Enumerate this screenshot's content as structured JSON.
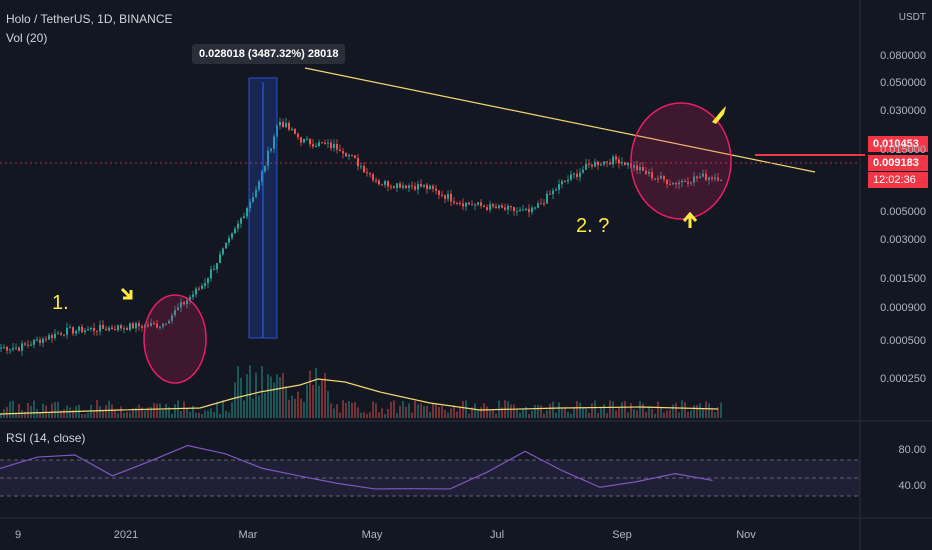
{
  "header": {
    "symbol": "Holo / TetherUS, 1D, BINANCE",
    "volume_indicator": "Vol (20)",
    "rsi_indicator": "RSI (14, close)",
    "quote_currency": "USDT"
  },
  "measure_label": "0.028018 (3487.32%) 28018",
  "annotations": {
    "one": "1.",
    "two": "2. ?"
  },
  "tags": {
    "last_price": "0.010453",
    "current_price": "0.009183",
    "countdown": "12:02:36"
  },
  "colors": {
    "up": "#26a69a",
    "down": "#ef5350",
    "trend": "#f5d76e",
    "rsi": "#7e57c2",
    "highlight_circle": "#e91e63",
    "measure": "#2962ff",
    "hline": "#f23645"
  },
  "chart_data": [
    {
      "type": "candlestick",
      "title": "Holo / TetherUS, 1D, BINANCE",
      "y_scale": "log",
      "y_ticks": [
        "0.080000",
        "0.050000",
        "0.030000",
        "0.015000",
        "0.005000",
        "0.003000",
        "0.001500",
        "0.000900",
        "0.000500",
        "0.000250"
      ],
      "x_ticks": [
        "9",
        "2021",
        "Mar",
        "May",
        "Jul",
        "Sep",
        "Nov"
      ],
      "series": [
        {
          "name": "Close",
          "x": [
            "2020-11-09",
            "2020-12-01",
            "2021-01-01",
            "2021-01-20",
            "2021-02-10",
            "2021-02-25",
            "2021-03-10",
            "2021-03-20",
            "2021-04-01",
            "2021-04-20",
            "2021-05-10",
            "2021-06-01",
            "2021-06-20",
            "2021-07-01",
            "2021-07-25",
            "2021-08-10",
            "2021-08-25",
            "2021-09-07",
            "2021-09-25",
            "2021-10-05",
            "2021-10-19"
          ],
          "values": [
            0.00045,
            0.0006,
            0.00065,
            0.00068,
            0.0014,
            0.0034,
            0.0085,
            0.026,
            0.018,
            0.016,
            0.0085,
            0.008,
            0.006,
            0.0056,
            0.005,
            0.0085,
            0.012,
            0.013,
            0.0095,
            0.0085,
            0.0095
          ]
        }
      ]
    },
    {
      "type": "bar",
      "title": "Vol (20)",
      "series": [
        {
          "name": "Volume",
          "values": []
        }
      ]
    },
    {
      "type": "line",
      "title": "RSI (14, close)",
      "y_ticks": [
        "80.00",
        "40.00"
      ],
      "series": [
        {
          "name": "RSI",
          "values": [
            60,
            72,
            75,
            55,
            70,
            88,
            75,
            62,
            55,
            45,
            40,
            38,
            35,
            58,
            82,
            60,
            42,
            48,
            56,
            50
          ]
        }
      ]
    }
  ]
}
